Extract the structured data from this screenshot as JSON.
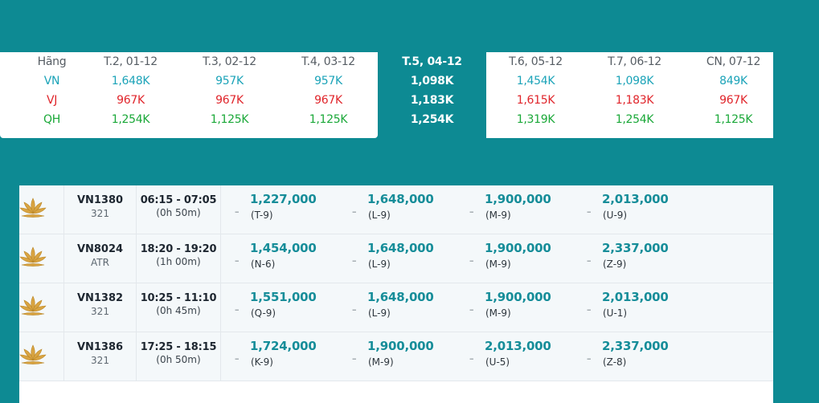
{
  "calendar": {
    "airline_header": "Hãng",
    "airlines": [
      "VN",
      "VJ",
      "QH"
    ],
    "days": [
      {
        "label": "T.2, 01-12",
        "vn": "1,648K",
        "vj": "967K",
        "qh": "1,254K"
      },
      {
        "label": "T.3, 02-12",
        "vn": "957K",
        "vj": "967K",
        "qh": "1,125K"
      },
      {
        "label": "T.4, 03-12",
        "vn": "957K",
        "vj": "967K",
        "qh": "1,125K"
      },
      {
        "label": "T.5, 04-12",
        "vn": "1,098K",
        "vj": "1,183K",
        "qh": "1,254K"
      },
      {
        "label": "T.6, 05-12",
        "vn": "1,454K",
        "vj": "1,615K",
        "qh": "1,319K"
      },
      {
        "label": "T.7, 06-12",
        "vn": "1,098K",
        "vj": "1,183K",
        "qh": "1,254K"
      },
      {
        "label": "CN, 07-12",
        "vn": "849K",
        "vj": "967K",
        "qh": "1,125K"
      }
    ],
    "colors": {
      "vn": "#1ba3b8",
      "vj": "#e0252b",
      "qh": "#1aa838",
      "background": "#0d8a93"
    }
  },
  "flights": [
    {
      "number": "VN1380",
      "aircraft": "321",
      "time": "06:15 - 07:05",
      "duration": "(0h 50m)",
      "fares": [
        {
          "price": "1,227,000",
          "class": "(T-9)"
        },
        {
          "price": "1,648,000",
          "class": "(L-9)"
        },
        {
          "price": "1,900,000",
          "class": "(M-9)"
        },
        {
          "price": "2,013,000",
          "class": "(U-9)"
        }
      ]
    },
    {
      "number": "VN8024",
      "aircraft": "ATR",
      "time": "18:20 - 19:20",
      "duration": "(1h 00m)",
      "fares": [
        {
          "price": "1,454,000",
          "class": "(N-6)"
        },
        {
          "price": "1,648,000",
          "class": "(L-9)"
        },
        {
          "price": "1,900,000",
          "class": "(M-9)"
        },
        {
          "price": "2,337,000",
          "class": "(Z-9)"
        }
      ]
    },
    {
      "number": "VN1382",
      "aircraft": "321",
      "time": "10:25 - 11:10",
      "duration": "(0h 45m)",
      "fares": [
        {
          "price": "1,551,000",
          "class": "(Q-9)"
        },
        {
          "price": "1,648,000",
          "class": "(L-9)"
        },
        {
          "price": "1,900,000",
          "class": "(M-9)"
        },
        {
          "price": "2,013,000",
          "class": "(U-1)"
        }
      ]
    },
    {
      "number": "VN1386",
      "aircraft": "321",
      "time": "17:25 - 18:15",
      "duration": "(0h 50m)",
      "fares": [
        {
          "price": "1,724,000",
          "class": "(K-9)"
        },
        {
          "price": "1,900,000",
          "class": "(M-9)"
        },
        {
          "price": "2,013,000",
          "class": "(U-5)"
        },
        {
          "price": "2,337,000",
          "class": "(Z-8)"
        }
      ]
    }
  ],
  "fare_separator": "–",
  "airline_logo_icon": "lotus-icon"
}
